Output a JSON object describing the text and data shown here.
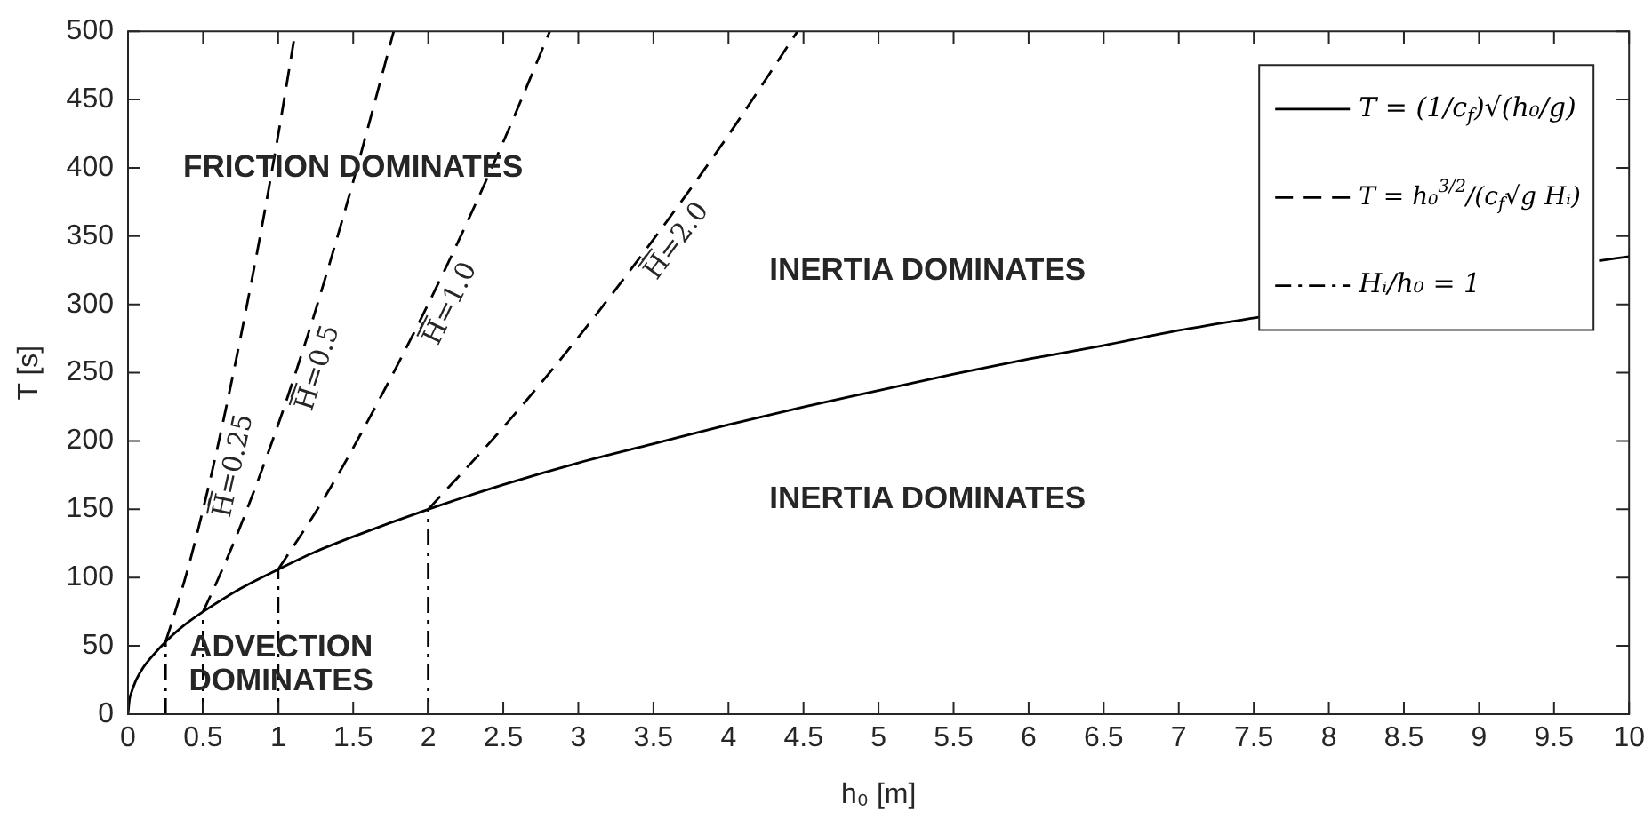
{
  "chart_data": {
    "type": "line",
    "xlabel": "h₀ [m]",
    "ylabel": "T [s]",
    "xlim": [
      0,
      10
    ],
    "xticks": [
      0,
      0.5,
      1,
      1.5,
      2,
      2.5,
      3,
      3.5,
      4,
      4.5,
      5,
      5.5,
      6,
      6.5,
      7,
      7.5,
      8,
      8.5,
      9,
      9.5,
      10
    ],
    "ylim": [
      0,
      500
    ],
    "yticks": [
      0,
      50,
      100,
      150,
      200,
      250,
      300,
      350,
      400,
      450,
      500
    ],
    "legend": "top right",
    "series": [
      {
        "name": "T = (1/c$_{f}$)√(h₀/g)",
        "color": "#000000",
        "line_style": "solid",
        "x": [
          0,
          0.01,
          0.02,
          0.05,
          0.1,
          0.15,
          0.25,
          0.35,
          0.5,
          0.75,
          1,
          1.25,
          1.5,
          2,
          2.5,
          3,
          3.5,
          4,
          4.5,
          5,
          5.5,
          6,
          6.5,
          7,
          7.55,
          8,
          9.8,
          10
        ],
        "values": [
          0,
          11,
          15,
          24,
          34,
          41,
          53,
          63,
          75,
          92,
          106,
          119,
          130,
          150,
          168,
          184,
          198,
          212,
          225,
          237,
          249,
          260,
          270,
          281,
          291,
          null,
          332,
          335
        ]
      },
      {
        "name": "T = h₀$^{3/2}$/(c$_{f}$√g Hᵢ)",
        "color": "#000000",
        "line_style": "dashed",
        "x": [
          0.25,
          0.3,
          0.4,
          0.5,
          0.575,
          0.7,
          0.8,
          0.9,
          1.0,
          1.115
        ],
        "values": [
          53,
          70,
          107,
          150,
          185,
          249,
          304,
          362,
          424,
          500
        ]
      },
      {
        "color": "#000000",
        "line_style": "dashed",
        "x": [
          0.5,
          0.6,
          0.75,
          1.0,
          1.14,
          1.25,
          1.5,
          1.77
        ],
        "values": [
          75,
          99,
          138,
          212,
          258,
          296,
          390,
          500
        ]
      },
      {
        "color": "#000000",
        "line_style": "dashed",
        "x": [
          1,
          1.25,
          1.5,
          2.03,
          2.5,
          2.81
        ],
        "values": [
          106,
          148,
          195,
          307,
          419,
          500
        ]
      },
      {
        "color": "#000000",
        "line_style": "dashed",
        "x": [
          2,
          2.5,
          3,
          3.55,
          4,
          4.46
        ],
        "values": [
          150,
          210,
          276,
          355,
          424,
          500
        ]
      },
      {
        "name": "Hᵢ/h₀ = 1",
        "color": "#000000",
        "line_style": "dashdot",
        "x": [
          0.25,
          0.25
        ],
        "values": [
          0,
          53
        ]
      },
      {
        "color": "#000000",
        "line_style": "dashdot",
        "x": [
          0.5,
          0.5
        ],
        "values": [
          0,
          75
        ]
      },
      {
        "color": "#000000",
        "line_style": "dashdot",
        "x": [
          1,
          1
        ],
        "values": [
          0,
          106
        ]
      },
      {
        "color": "#000000",
        "line_style": "dashdot",
        "x": [
          2,
          2
        ],
        "values": [
          0,
          150
        ]
      }
    ],
    "annotations": [
      "FRICTION DOMINATES",
      "INERTIA DOMINATES",
      "INERTIA DOMINATES",
      "ADVECTION\nDOMINATES",
      {
        "text": "H̄=0.25",
        "x": 0.575,
        "y": 185
      },
      {
        "text": "H̄=0.5",
        "x": 1.14,
        "y": 258
      },
      {
        "text": "H̄=1.0",
        "x": 2.03,
        "y": 307
      },
      {
        "text": "H̄=2.0",
        "x": 3.55,
        "y": 355
      }
    ]
  }
}
